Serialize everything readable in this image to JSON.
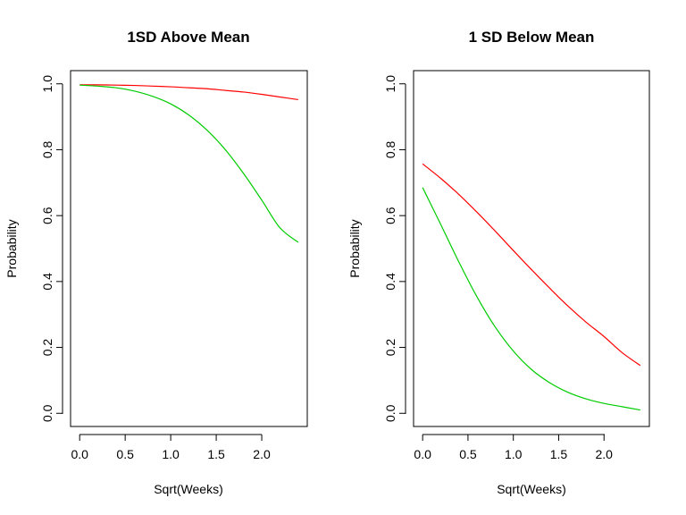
{
  "chart_data": [
    {
      "type": "line",
      "title": "1SD Above Mean",
      "xlabel": "Sqrt(Weeks)",
      "ylabel": "Probability",
      "xlim": [
        -0.1,
        2.5
      ],
      "ylim": [
        -0.04,
        1.04
      ],
      "x_ticks": [
        "0.0",
        "0.5",
        "1.0",
        "1.5",
        "2.0"
      ],
      "y_ticks": [
        "0.0",
        "0.2",
        "0.4",
        "0.6",
        "0.8",
        "1.0"
      ],
      "grid": false,
      "series": [
        {
          "color": "#ff0000",
          "x": [
            0.0,
            0.2,
            0.4,
            0.6,
            0.8,
            1.0,
            1.2,
            1.4,
            1.6,
            1.8,
            2.0,
            2.2,
            2.4
          ],
          "y": [
            0.997,
            0.997,
            0.996,
            0.995,
            0.993,
            0.991,
            0.988,
            0.985,
            0.98,
            0.975,
            0.968,
            0.96,
            0.952
          ]
        },
        {
          "color": "#00cc00",
          "x": [
            0.0,
            0.2,
            0.4,
            0.6,
            0.8,
            1.0,
            1.2,
            1.4,
            1.6,
            1.8,
            2.0,
            2.2,
            2.4
          ],
          "y": [
            0.996,
            0.993,
            0.988,
            0.978,
            0.962,
            0.939,
            0.905,
            0.859,
            0.8,
            0.728,
            0.647,
            0.563,
            0.519
          ]
        }
      ]
    },
    {
      "type": "line",
      "title": "1 SD Below Mean",
      "xlabel": "Sqrt(Weeks)",
      "ylabel": "Probability",
      "xlim": [
        -0.1,
        2.5
      ],
      "ylim": [
        -0.04,
        1.04
      ],
      "x_ticks": [
        "0.0",
        "0.5",
        "1.0",
        "1.5",
        "2.0"
      ],
      "y_ticks": [
        "0.0",
        "0.2",
        "0.4",
        "0.6",
        "0.8",
        "1.0"
      ],
      "grid": false,
      "series": [
        {
          "color": "#ff0000",
          "x": [
            0.0,
            0.2,
            0.4,
            0.6,
            0.8,
            1.0,
            1.2,
            1.4,
            1.6,
            1.8,
            2.0,
            2.2,
            2.4
          ],
          "y": [
            0.757,
            0.713,
            0.664,
            0.61,
            0.553,
            0.494,
            0.436,
            0.38,
            0.326,
            0.277,
            0.233,
            0.184,
            0.145
          ]
        },
        {
          "color": "#00cc00",
          "x": [
            0.0,
            0.2,
            0.4,
            0.6,
            0.8,
            1.0,
            1.2,
            1.4,
            1.6,
            1.8,
            2.0,
            2.2,
            2.4
          ],
          "y": [
            0.685,
            0.573,
            0.459,
            0.353,
            0.262,
            0.189,
            0.133,
            0.093,
            0.064,
            0.044,
            0.03,
            0.02,
            0.01
          ]
        }
      ]
    }
  ]
}
